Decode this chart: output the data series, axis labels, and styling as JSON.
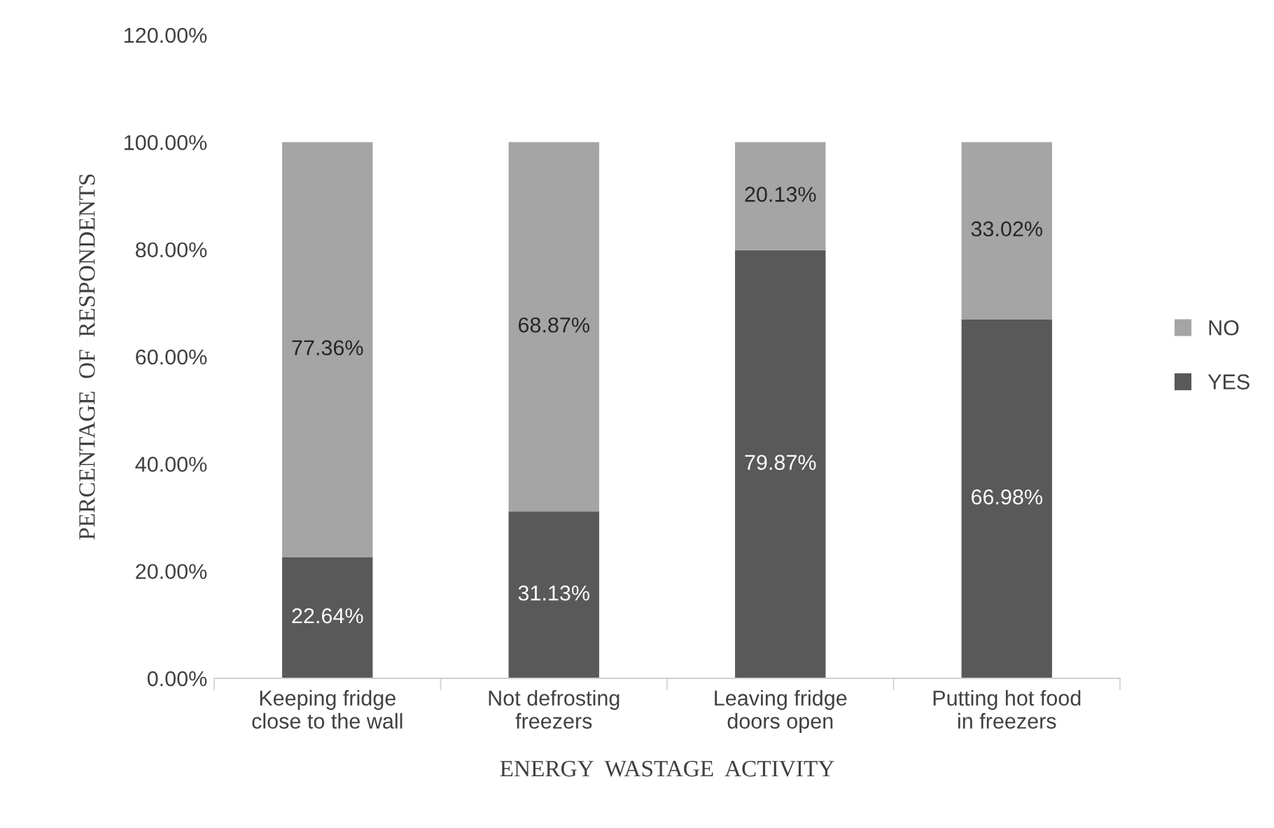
{
  "chart_data": {
    "type": "bar",
    "stacked": true,
    "xlabel": "ENERGY  WASTAGE  ACTIVITY",
    "ylabel": "PERCENTAGE  OF  RESPONDENTS",
    "categories": [
      "Keeping fridge\nclose to the wall",
      "Not defrosting\nfreezers",
      "Leaving fridge\ndoors open",
      "Putting hot food\nin freezers"
    ],
    "series": [
      {
        "name": "YES",
        "color": "#595959",
        "values": [
          22.64,
          31.13,
          79.87,
          66.98
        ],
        "value_labels": [
          "22.64%",
          "31.13%",
          "79.87%",
          "66.98%"
        ]
      },
      {
        "name": "NO",
        "color": "#a5a5a5",
        "values": [
          77.36,
          68.87,
          20.13,
          33.02
        ],
        "value_labels": [
          "77.36%",
          "68.87%",
          "20.13%",
          "33.02%"
        ]
      }
    ],
    "ylim": [
      0,
      120
    ],
    "yticks": [
      {
        "value": 0,
        "label": "0.00%"
      },
      {
        "value": 20,
        "label": "20.00%"
      },
      {
        "value": 40,
        "label": "40.00%"
      },
      {
        "value": 60,
        "label": "60.00%"
      },
      {
        "value": 80,
        "label": "80.00%"
      },
      {
        "value": 100,
        "label": "100.00%"
      },
      {
        "value": 120,
        "label": "120.00%"
      }
    ],
    "grid": false,
    "legend": "right"
  }
}
